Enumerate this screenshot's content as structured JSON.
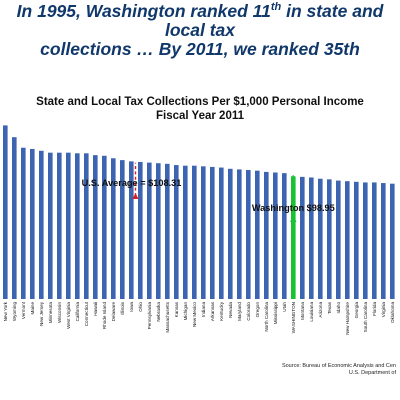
{
  "headline": {
    "line1_before": "In 1995, Washington ranked 11",
    "line1_super": "th",
    "line1_after": " in state and local tax",
    "line2": "collections … By 2011, we ranked 35th"
  },
  "chart_data": {
    "type": "bar",
    "title": "State and Local Tax Collections Per $1,000 Personal Income",
    "subtitle": "Fiscal Year 2011",
    "categories": [
      "New York",
      "Wyoming",
      "Vermont",
      "Maine",
      "New Jersey",
      "Minnesota",
      "Wisconsin",
      "West Virginia",
      "California",
      "Connecticut",
      "Hawaii",
      "Rhode Island",
      "Delaware",
      "Illinois",
      "Iowa",
      "Ohio",
      "Pennsylvania",
      "Nebraska",
      "Massachusetts",
      "Kansas",
      "Michigan",
      "New Mexico",
      "Indiana",
      "Arkansas",
      "Kentucky",
      "Nevada",
      "Maryland",
      "Colorado",
      "Oregon",
      "North Carolina",
      "Mississippi",
      "Utah",
      "WASHINGTON",
      "Montana",
      "Louisiana",
      "Arizona",
      "Texas",
      "Idaho",
      "New Hampshire",
      "Georgia",
      "South Carolina",
      "Florida",
      "Virginia",
      "Oklahoma"
    ],
    "values": [
      140.0,
      130.5,
      122.0,
      121.0,
      119.5,
      118.0,
      118.0,
      118.0,
      117.5,
      117.5,
      116.0,
      115.5,
      113.5,
      112.0,
      111.0,
      110.5,
      110.0,
      109.5,
      109.0,
      108.0,
      107.5,
      107.5,
      107.0,
      106.5,
      106.0,
      105.0,
      104.5,
      104.0,
      103.5,
      102.5,
      102.0,
      101.5,
      98.95,
      98.5,
      98.0,
      97.0,
      96.5,
      95.5,
      95.0,
      94.5,
      94.0,
      94.0,
      93.5,
      93.0
    ],
    "highlight_index": 32,
    "highlight_color": "#19c232",
    "bar_color": "#3c64b0",
    "ylim": [
      0,
      150
    ],
    "us_average": {
      "label": "U.S. Average = $108.31",
      "value": 108.31,
      "color": "#dd1f1f"
    },
    "highlight_label": "Washington $98.95",
    "grid": false,
    "xlabel": "",
    "ylabel": ""
  },
  "source": {
    "line1": "Source: Bureau of Economic Analysis and Cen",
    "line2": "U.S. Department of"
  }
}
